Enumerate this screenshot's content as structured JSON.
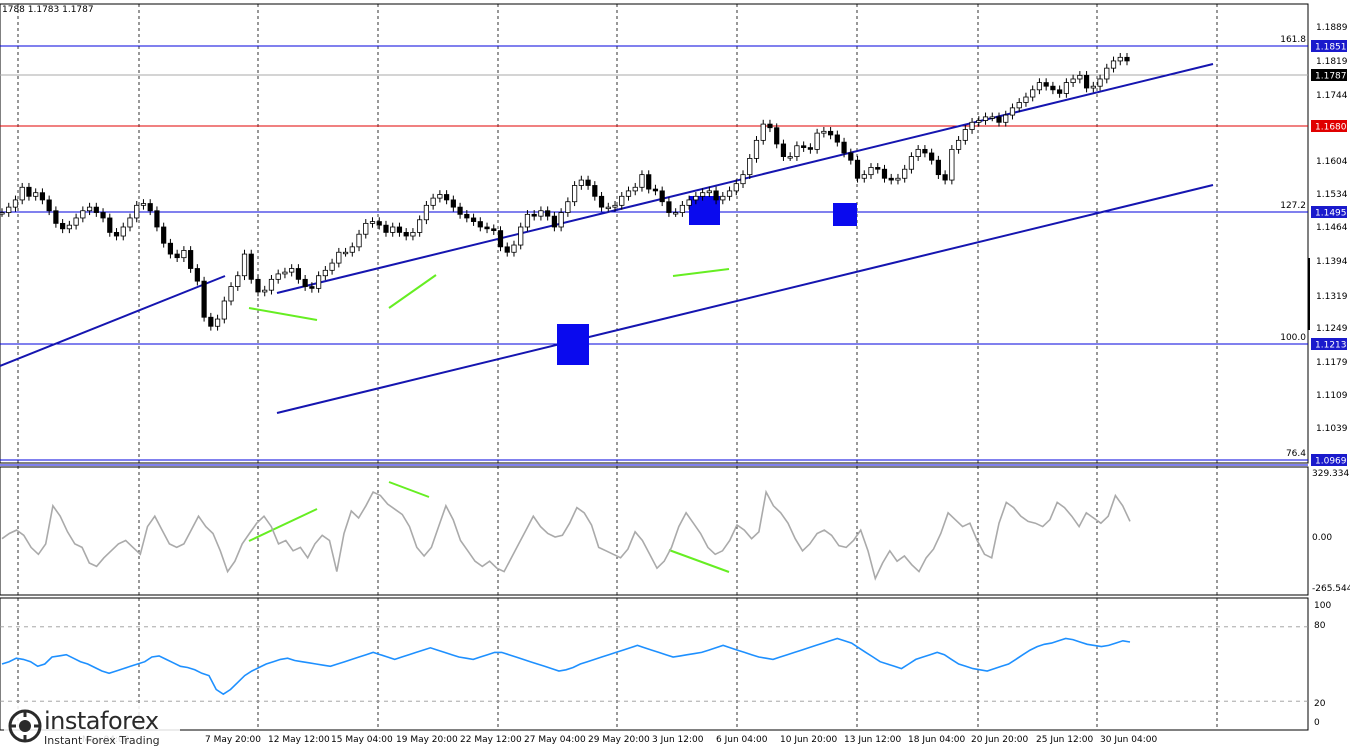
{
  "header": {
    "ohlc": "1788 1.1783 1.1787"
  },
  "colors": {
    "fib": "#0000dd",
    "red_level": "#e00000",
    "channel": "#1515b0",
    "green": "#66ee22",
    "box": "#0a0aee",
    "grey_line": "#aaaaaa",
    "rsi": "#1e90ff",
    "tag_bg": "#1a1acc",
    "price_tag_bg": "#000000"
  },
  "watermark": {
    "name": "instaforex",
    "sub": "Instant Forex Trading"
  },
  "chart_data": [
    {
      "type": "line",
      "panel": "price",
      "price_scale": [
        "1.1889",
        "1.1819",
        "1.1744",
        "1.1674",
        "1.1604",
        "1.1534",
        "1.1464",
        "1.1394",
        "1.1319",
        "1.1249",
        "1.1179",
        "1.1109",
        "1.1039"
      ],
      "ylim": [
        1.0969,
        1.1889
      ],
      "fib_levels": [
        {
          "label": "161.8",
          "value": "1.1851"
        },
        {
          "label": "127.2",
          "value": "1.1495"
        },
        {
          "label": "100.0",
          "value": "1.1213"
        },
        {
          "label": "76.4",
          "value": "1.0969"
        }
      ],
      "red_level": "1.1680",
      "current_price": "1.1787",
      "time_labels": [
        "May 04:00",
        "7 May 20:00",
        "12 May 12:00",
        "15 May 04:00",
        "19 May 20:00",
        "22 May 12:00",
        "27 May 04:00",
        "29 May 20:00",
        "3 Jun 12:00",
        "6 Jun 04:00",
        "10 Jun 20:00",
        "13 Jun 12:00",
        "18 Jun 04:00",
        "20 Jun 20:00",
        "25 Jun 12:00",
        "30 Jun 04:00"
      ],
      "close_series": [
        1.1375,
        1.139,
        1.141,
        1.1445,
        1.142,
        1.143,
        1.141,
        1.138,
        1.1345,
        1.133,
        1.134,
        1.136,
        1.138,
        1.139,
        1.1375,
        1.136,
        1.132,
        1.131,
        1.1335,
        1.136,
        1.1395,
        1.14,
        1.138,
        1.1335,
        1.129,
        1.126,
        1.125,
        1.127,
        1.122,
        1.1185,
        1.1085,
        1.106,
        1.108,
        1.113,
        1.117,
        1.12,
        1.126,
        1.119,
        1.1155,
        1.116,
        1.119,
        1.1205,
        1.121,
        1.122,
        1.119,
        1.117,
        1.1165,
        1.12,
        1.1215,
        1.1235,
        1.1265,
        1.1265,
        1.128,
        1.1315,
        1.1345,
        1.135,
        1.134,
        1.132,
        1.1335,
        1.132,
        1.131,
        1.132,
        1.1355,
        1.1395,
        1.1415,
        1.1425,
        1.141,
        1.139,
        1.137,
        1.136,
        1.135,
        1.1335,
        1.133,
        1.1325,
        1.128,
        1.1265,
        1.1285,
        1.1335,
        1.137,
        1.1365,
        1.138,
        1.1365,
        1.1335,
        1.1375,
        1.1405,
        1.145,
        1.1465,
        1.145,
        1.142,
        1.139,
        1.139,
        1.1395,
        1.142,
        1.1435,
        1.1445,
        1.148,
        1.144,
        1.1435,
        1.1405,
        1.1375,
        1.1375,
        1.1395,
        1.141,
        1.142,
        1.143,
        1.1435,
        1.141,
        1.142,
        1.1435,
        1.1455,
        1.148,
        1.1525,
        1.1575,
        1.162,
        1.161,
        1.1565,
        1.153,
        1.153,
        1.156,
        1.1555,
        1.155,
        1.1595,
        1.16,
        1.159,
        1.157,
        1.154,
        1.152,
        1.147,
        1.148,
        1.15,
        1.1495,
        1.147,
        1.1465,
        1.147,
        1.1495,
        1.153,
        1.155,
        1.154,
        1.152,
        1.148,
        1.1465,
        1.155,
        1.1575,
        1.1605,
        1.1625,
        1.163,
        1.164,
        1.164,
        1.1625,
        1.1645,
        1.1665,
        1.168,
        1.1695,
        1.1715,
        1.1735,
        1.1725,
        1.1715,
        1.1705,
        1.1735,
        1.1745,
        1.1755,
        1.172,
        1.1725,
        1.1745,
        1.1775,
        1.1795,
        1.1805,
        1.1795
      ]
    },
    {
      "type": "line",
      "panel": "cci",
      "scale_labels": [
        "329.3341",
        "0.00",
        "-265.544"
      ],
      "ylim": [
        -265.544,
        329.3341
      ],
      "values": [
        -10,
        20,
        40,
        10,
        -60,
        -100,
        -40,
        180,
        120,
        30,
        -40,
        -60,
        -150,
        -170,
        -120,
        -80,
        -40,
        -20,
        -60,
        -100,
        60,
        120,
        40,
        -40,
        -60,
        -40,
        40,
        120,
        60,
        20,
        -80,
        -200,
        -140,
        -40,
        20,
        80,
        120,
        60,
        -40,
        -20,
        -80,
        -60,
        -120,
        -40,
        10,
        -20,
        -200,
        20,
        150,
        110,
        180,
        260,
        240,
        190,
        160,
        130,
        60,
        -60,
        -110,
        -60,
        60,
        180,
        100,
        -20,
        -80,
        -140,
        -170,
        -140,
        -180,
        -200,
        -120,
        -40,
        40,
        120,
        60,
        20,
        0,
        10,
        80,
        170,
        140,
        70,
        -60,
        -80,
        -100,
        -120,
        -70,
        30,
        -20,
        -100,
        -180,
        -140,
        -60,
        60,
        140,
        80,
        20,
        -60,
        -100,
        -80,
        -20,
        70,
        40,
        -10,
        30,
        260,
        180,
        140,
        80,
        -10,
        -80,
        -40,
        20,
        40,
        10,
        -50,
        -60,
        -20,
        40,
        -80,
        -240,
        -150,
        -80,
        -140,
        -110,
        -160,
        -200,
        -120,
        -70,
        20,
        140,
        100,
        60,
        80,
        -20,
        -100,
        -120,
        80,
        200,
        170,
        120,
        90,
        80,
        60,
        100,
        200,
        170,
        120,
        60,
        140,
        110,
        80,
        120,
        240,
        180,
        90
      ]
    },
    {
      "type": "line",
      "panel": "rsi",
      "scale_labels": [
        "100",
        "80",
        "20",
        "0"
      ],
      "ylim": [
        0,
        100
      ],
      "values": [
        50,
        52,
        55,
        54,
        52,
        48,
        50,
        56,
        57,
        58,
        55,
        52,
        50,
        47,
        44,
        42,
        44,
        46,
        48,
        50,
        52,
        56,
        57,
        54,
        51,
        48,
        47,
        45,
        42,
        40,
        28,
        24,
        28,
        34,
        40,
        44,
        47,
        50,
        52,
        54,
        55,
        53,
        52,
        51,
        50,
        49,
        48,
        50,
        52,
        54,
        56,
        58,
        60,
        58,
        56,
        54,
        56,
        58,
        60,
        62,
        64,
        62,
        60,
        58,
        56,
        55,
        54,
        56,
        58,
        60,
        60,
        58,
        56,
        54,
        52,
        50,
        48,
        46,
        44,
        45,
        47,
        50,
        52,
        54,
        56,
        58,
        60,
        62,
        64,
        66,
        64,
        62,
        60,
        58,
        56,
        57,
        58,
        59,
        60,
        62,
        64,
        66,
        64,
        62,
        60,
        58,
        56,
        55,
        54,
        56,
        58,
        60,
        62,
        64,
        66,
        68,
        70,
        72,
        70,
        68,
        64,
        60,
        56,
        52,
        50,
        48,
        46,
        50,
        54,
        56,
        58,
        60,
        58,
        54,
        50,
        48,
        46,
        45,
        44,
        46,
        48,
        50,
        54,
        58,
        62,
        65,
        67,
        68,
        70,
        72,
        71,
        69,
        67,
        66,
        65,
        66,
        68,
        70,
        69
      ]
    }
  ]
}
